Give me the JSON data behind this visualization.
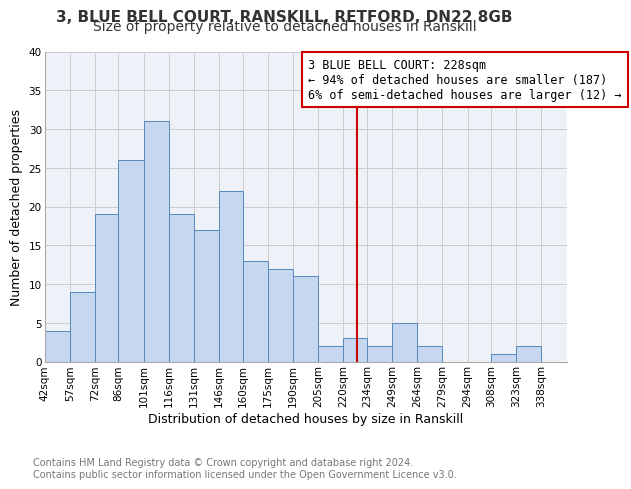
{
  "title": "3, BLUE BELL COURT, RANSKILL, RETFORD, DN22 8GB",
  "subtitle": "Size of property relative to detached houses in Ranskill",
  "xlabel": "Distribution of detached houses by size in Ranskill",
  "ylabel": "Number of detached properties",
  "bin_labels": [
    "42sqm",
    "57sqm",
    "72sqm",
    "86sqm",
    "101sqm",
    "116sqm",
    "131sqm",
    "146sqm",
    "160sqm",
    "175sqm",
    "190sqm",
    "205sqm",
    "220sqm",
    "234sqm",
    "249sqm",
    "264sqm",
    "279sqm",
    "294sqm",
    "308sqm",
    "323sqm",
    "338sqm"
  ],
  "bin_edges": [
    42,
    57,
    72,
    86,
    101,
    116,
    131,
    146,
    160,
    175,
    190,
    205,
    220,
    234,
    249,
    264,
    279,
    294,
    308,
    323,
    338,
    353
  ],
  "counts": [
    4,
    9,
    19,
    26,
    31,
    19,
    17,
    22,
    13,
    12,
    11,
    2,
    3,
    2,
    5,
    2,
    0,
    0,
    1,
    2,
    0
  ],
  "bar_color": "#c5d8f0",
  "bar_edge_color": "#5588bb",
  "vline_x": 228,
  "vline_color": "#cc0000",
  "annotation_line1": "3 BLUE BELL COURT: 228sqm",
  "annotation_line2": "← 94% of detached houses are smaller (187)",
  "annotation_line3": "6% of semi-detached houses are larger (12) →",
  "ylim": [
    0,
    40
  ],
  "yticks": [
    0,
    5,
    10,
    15,
    20,
    25,
    30,
    35,
    40
  ],
  "grid_color": "#cccccc",
  "plot_bg_color": "#eef2f8",
  "footer_line1": "Contains HM Land Registry data © Crown copyright and database right 2024.",
  "footer_line2": "Contains public sector information licensed under the Open Government Licence v3.0.",
  "title_fontsize": 11,
  "subtitle_fontsize": 10,
  "axis_label_fontsize": 9,
  "tick_label_fontsize": 7.5,
  "annotation_fontsize": 8.5,
  "footer_fontsize": 7
}
